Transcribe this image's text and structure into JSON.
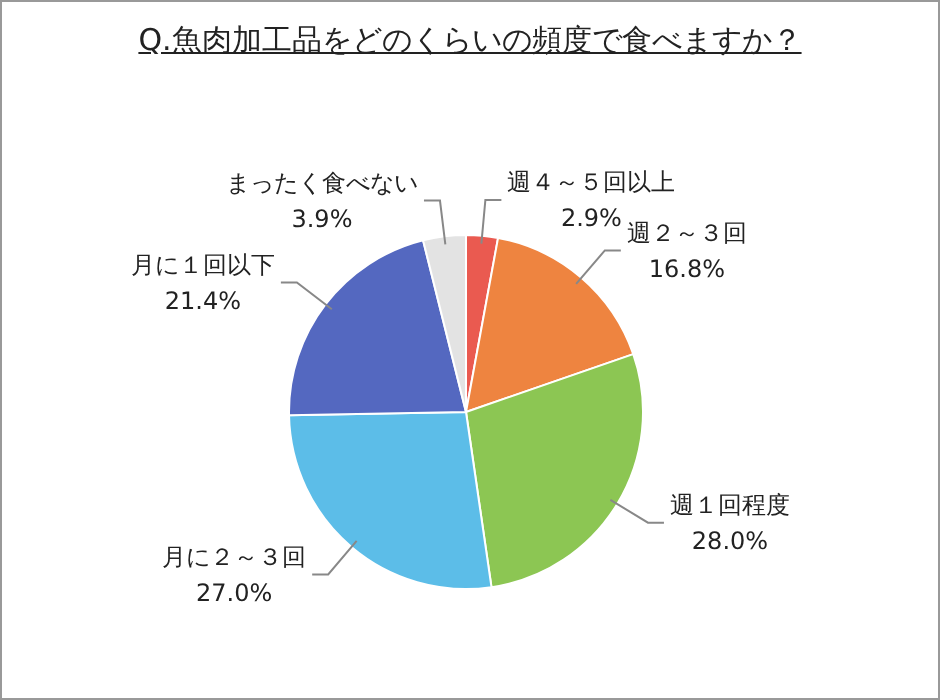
{
  "chart_data": {
    "type": "pie",
    "title": "Q.魚肉加工品をどのくらいの頻度で食べますか？",
    "categories": [
      "週４～５回以上",
      "週２～３回",
      "週１回程度",
      "月に２～３回",
      "月に１回以下",
      "まったく食べない"
    ],
    "values": [
      2.9,
      16.8,
      28.0,
      27.0,
      21.4,
      3.9
    ],
    "value_labels": [
      "2.9%",
      "16.8%",
      "28.0%",
      "27.0%",
      "21.4%",
      "3.9%"
    ],
    "colors": [
      "#ea5a50",
      "#ee8440",
      "#8cc653",
      "#5cbde8",
      "#5468c0",
      "#e3e3e3"
    ],
    "legend": false
  }
}
